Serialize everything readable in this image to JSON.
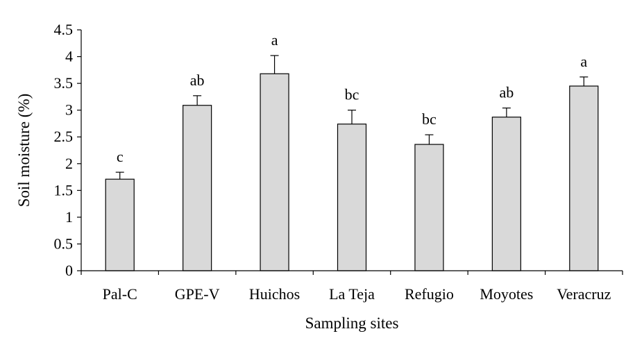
{
  "chart_data": {
    "type": "bar",
    "title": "",
    "xlabel": "Sampling sites",
    "ylabel": "Soil moisture (%)",
    "ylim": [
      0,
      4.5
    ],
    "yticks": [
      "0",
      "0.5",
      "1",
      "1.5",
      "2",
      "2.5",
      "3",
      "3.5",
      "4",
      "4.5"
    ],
    "grid": false,
    "legend": "none",
    "categories": [
      "Pal-C",
      "GPE-V",
      "Huichos",
      "La Teja",
      "Refugio",
      "Moyotes",
      "Veracruz"
    ],
    "values": [
      1.71,
      3.09,
      3.68,
      2.74,
      2.36,
      2.87,
      3.45
    ],
    "error_upper": [
      0.13,
      0.18,
      0.34,
      0.26,
      0.18,
      0.17,
      0.17
    ],
    "significance_labels": [
      "c",
      "ab",
      "a",
      "bc",
      "bc",
      "ab",
      "a"
    ],
    "colors": {
      "bar_fill": "#d9d9d9",
      "bar_stroke": "#000000",
      "axis": "#000000"
    }
  }
}
